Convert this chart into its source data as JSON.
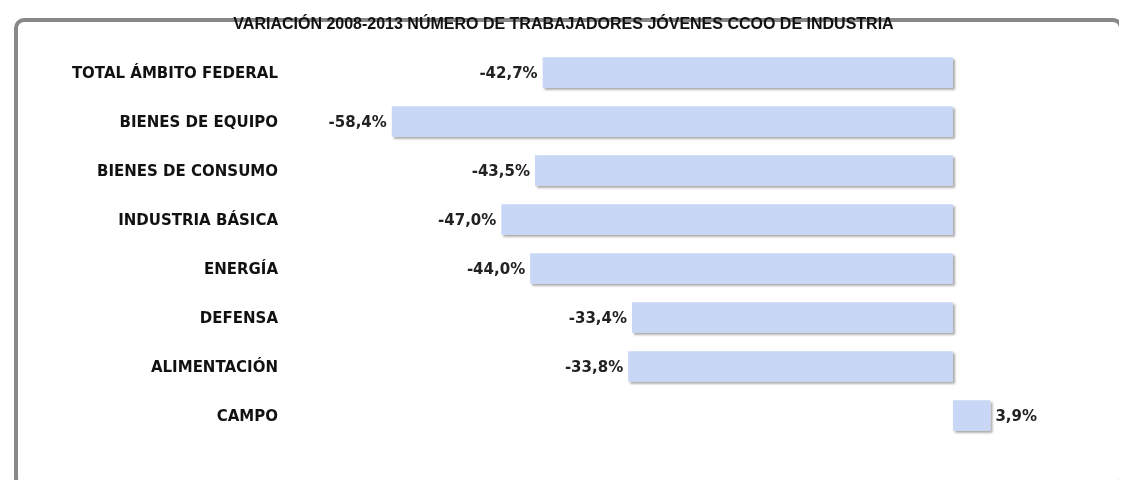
{
  "chart_data": {
    "type": "bar",
    "orientation": "horizontal",
    "title": "VARIACIÓN 2008-2013 NÚMERO DE TRABAJADORES JÓVENES CCOO DE INDUSTRIA",
    "categories": [
      "TOTAL ÁMBITO FEDERAL",
      "BIENES DE EQUIPO",
      "BIENES DE CONSUMO",
      "INDUSTRIA BÁSICA",
      "ENERGÍA",
      "DEFENSA",
      "ALIMENTACIÓN",
      "CAMPO"
    ],
    "values": [
      -42.7,
      -58.4,
      -43.5,
      -47.0,
      -44.0,
      -33.4,
      -33.8,
      3.9
    ],
    "value_labels": [
      "-42,7%",
      "-58,4%",
      "-43,5%",
      "-47,0%",
      "-44,0%",
      "-33,4%",
      "-33,8%",
      "3,9%"
    ],
    "color": "#c8d7f6"
  }
}
